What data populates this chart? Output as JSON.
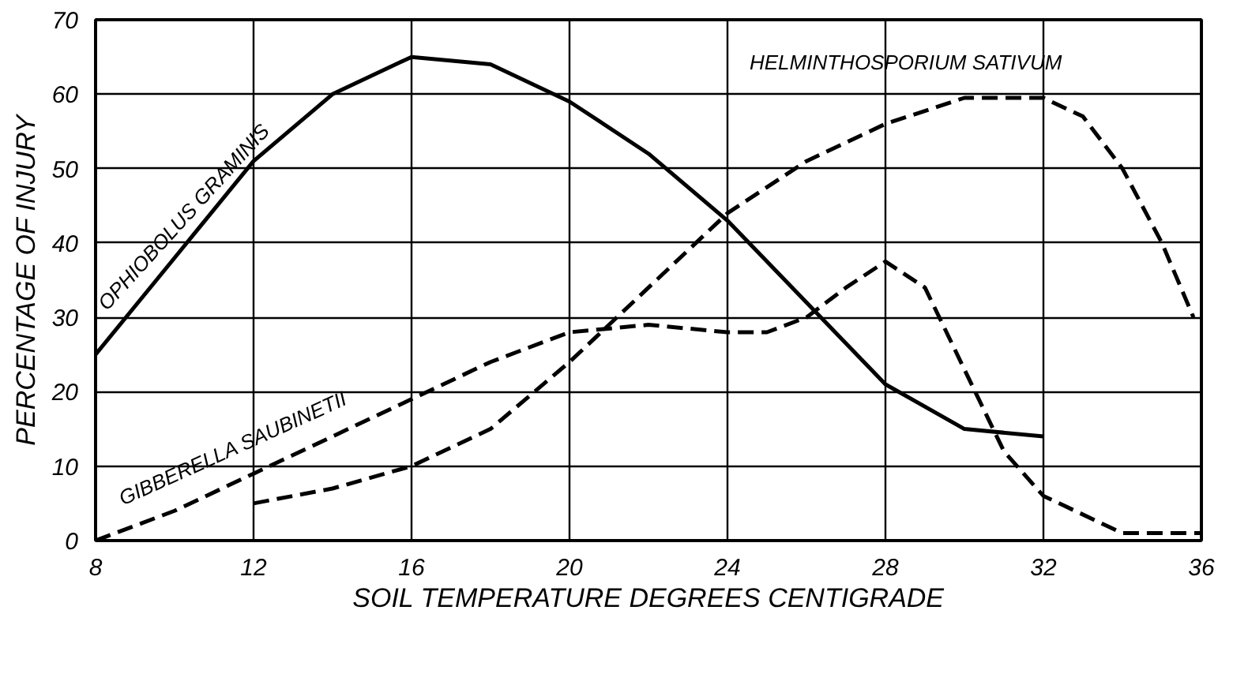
{
  "chart_data": {
    "type": "line",
    "xlabel": "SOIL TEMPERATURE DEGREES CENTIGRADE",
    "ylabel": "PERCENTAGE OF INJURY",
    "xlim": [
      8,
      36
    ],
    "ylim": [
      0,
      70
    ],
    "xticks": [
      8,
      12,
      16,
      20,
      24,
      28,
      32,
      36
    ],
    "yticks": [
      0,
      10,
      20,
      30,
      40,
      50,
      60,
      70
    ],
    "grid": true,
    "marker": "none",
    "series": [
      {
        "name": "OPHIOBOLUS GRAMINIS",
        "color": "#000000",
        "line_style": "solid",
        "x": [
          8,
          10,
          12,
          14,
          16,
          18,
          20,
          22,
          24,
          26,
          28,
          30,
          32
        ],
        "values": [
          25,
          38,
          51,
          60,
          65,
          64,
          59,
          52,
          43,
          32,
          21,
          15,
          14
        ]
      },
      {
        "name": "HELMINTHOSPORIUM SATIVUM",
        "color": "#000000",
        "line_style": "dashed",
        "x": [
          12,
          14,
          16,
          18,
          20,
          22,
          24,
          26,
          28,
          30,
          32,
          33,
          34,
          35,
          35.8
        ],
        "values": [
          5,
          7,
          10,
          15,
          24,
          34,
          44,
          51,
          56,
          59.5,
          59.5,
          57,
          50,
          40,
          30
        ]
      },
      {
        "name": "GIBBERELLA SAUBINETII",
        "color": "#000000",
        "line_style": "dashed",
        "x": [
          8,
          10,
          12,
          14,
          16,
          18,
          20,
          22,
          24,
          25,
          26,
          27,
          28,
          29,
          30,
          31,
          32,
          34,
          36
        ],
        "values": [
          0,
          4,
          9,
          14,
          19,
          24,
          28,
          29,
          28,
          28,
          30,
          34,
          37.5,
          34,
          23,
          12,
          6,
          1,
          1
        ]
      }
    ]
  }
}
